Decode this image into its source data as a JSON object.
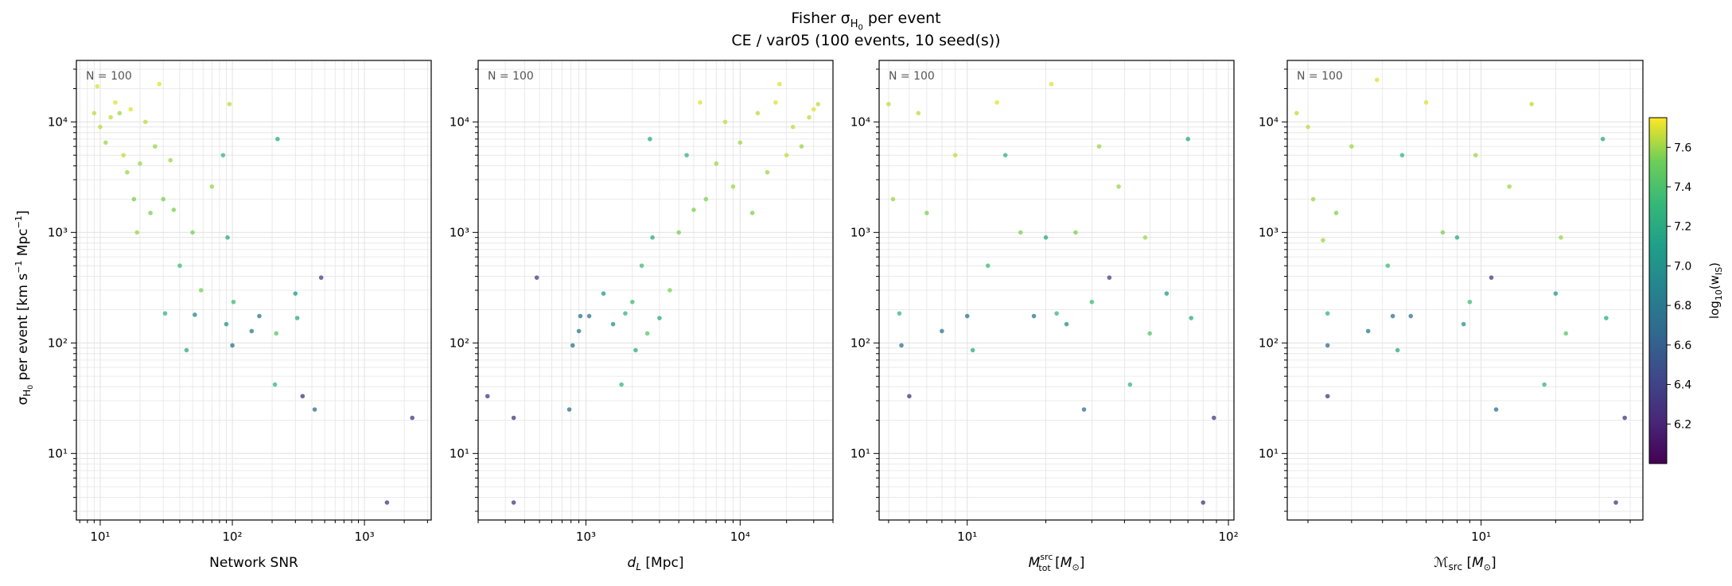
{
  "figure": {
    "title_prefix": "Fisher σ",
    "title_sub": "H",
    "title_subsub": "0",
    "title_suffix": " per event",
    "subtitle": "CE / var05  (100 events, 10 seed(s))"
  },
  "colorbar": {
    "label": "log₁₀(w_IS)",
    "label_main": "log",
    "label_base": "10",
    "label_arg": "(w",
    "label_argsub": "IS",
    "label_close": ")",
    "range": [
      6.0,
      7.75
    ],
    "ticks": [
      "6.2",
      "6.4",
      "6.6",
      "6.8",
      "7.0",
      "7.2",
      "7.4",
      "7.6"
    ],
    "colormap": "viridis"
  },
  "chart_data": [
    {
      "type": "scatter",
      "annotation": "N = 100",
      "xlabel": "Network SNR",
      "ylabel": "σ_H0 per event [km s⁻¹ Mpc⁻¹]",
      "xscale": "log",
      "yscale": "log",
      "xlim": [
        6.6,
        3200
      ],
      "ylim": [
        2.5,
        36000
      ],
      "x_ticks": [
        "10¹",
        "10²",
        "10³"
      ],
      "y_ticks": [
        "10¹",
        "10²",
        "10³",
        "10⁴"
      ],
      "grid": true,
      "points": [
        {
          "x": 9,
          "y": 12000,
          "c": 7.65
        },
        {
          "x": 9.5,
          "y": 21000,
          "c": 7.7
        },
        {
          "x": 10,
          "y": 9000,
          "c": 7.65
        },
        {
          "x": 11,
          "y": 6500,
          "c": 7.6
        },
        {
          "x": 12,
          "y": 11000,
          "c": 7.65
        },
        {
          "x": 13,
          "y": 15000,
          "c": 7.7
        },
        {
          "x": 14,
          "y": 12000,
          "c": 7.6
        },
        {
          "x": 15,
          "y": 5000,
          "c": 7.65
        },
        {
          "x": 16,
          "y": 3500,
          "c": 7.6
        },
        {
          "x": 17,
          "y": 13000,
          "c": 7.7
        },
        {
          "x": 18,
          "y": 2000,
          "c": 7.55
        },
        {
          "x": 19,
          "y": 1000,
          "c": 7.6
        },
        {
          "x": 20,
          "y": 4200,
          "c": 7.6
        },
        {
          "x": 22,
          "y": 10000,
          "c": 7.65
        },
        {
          "x": 24,
          "y": 1500,
          "c": 7.55
        },
        {
          "x": 26,
          "y": 6000,
          "c": 7.6
        },
        {
          "x": 28,
          "y": 22000,
          "c": 7.7
        },
        {
          "x": 30,
          "y": 2000,
          "c": 7.55
        },
        {
          "x": 31,
          "y": 185,
          "c": 7.3
        },
        {
          "x": 34,
          "y": 4500,
          "c": 7.6
        },
        {
          "x": 36,
          "y": 1600,
          "c": 7.55
        },
        {
          "x": 40,
          "y": 500,
          "c": 7.35
        },
        {
          "x": 45,
          "y": 86,
          "c": 7.2
        },
        {
          "x": 50,
          "y": 1000,
          "c": 7.55
        },
        {
          "x": 52,
          "y": 180,
          "c": 6.9
        },
        {
          "x": 58,
          "y": 300,
          "c": 7.55
        },
        {
          "x": 70,
          "y": 2600,
          "c": 7.6
        },
        {
          "x": 85,
          "y": 5000,
          "c": 7.3
        },
        {
          "x": 90,
          "y": 148,
          "c": 7.0
        },
        {
          "x": 92,
          "y": 900,
          "c": 7.2
        },
        {
          "x": 95,
          "y": 14500,
          "c": 7.65
        },
        {
          "x": 100,
          "y": 95,
          "c": 6.7
        },
        {
          "x": 102,
          "y": 235,
          "c": 7.35
        },
        {
          "x": 140,
          "y": 128,
          "c": 6.8
        },
        {
          "x": 160,
          "y": 175,
          "c": 6.75
        },
        {
          "x": 210,
          "y": 42,
          "c": 7.3
        },
        {
          "x": 215,
          "y": 122,
          "c": 7.45
        },
        {
          "x": 220,
          "y": 7000,
          "c": 7.2
        },
        {
          "x": 300,
          "y": 280,
          "c": 7.05
        },
        {
          "x": 310,
          "y": 168,
          "c": 7.2
        },
        {
          "x": 340,
          "y": 33,
          "c": 6.3
        },
        {
          "x": 420,
          "y": 25,
          "c": 6.7
        },
        {
          "x": 470,
          "y": 390,
          "c": 6.35
        },
        {
          "x": 1480,
          "y": 3.6,
          "c": 6.3
        },
        {
          "x": 2300,
          "y": 21,
          "c": 6.3
        }
      ]
    },
    {
      "type": "scatter",
      "annotation": "N = 100",
      "xlabel": "d_L [Mpc]",
      "xscale": "log",
      "yscale": "log",
      "xlim": [
        200,
        40000
      ],
      "ylim": [
        2.5,
        36000
      ],
      "x_ticks": [
        "10³",
        "10⁴"
      ],
      "y_ticks": [
        "10¹",
        "10²",
        "10³",
        "10⁴"
      ],
      "grid": true,
      "points": [
        {
          "x": 230,
          "y": 33,
          "c": 6.3
        },
        {
          "x": 340,
          "y": 3.6,
          "c": 6.3
        },
        {
          "x": 340,
          "y": 21,
          "c": 6.3
        },
        {
          "x": 480,
          "y": 390,
          "c": 6.35
        },
        {
          "x": 780,
          "y": 25,
          "c": 6.7
        },
        {
          "x": 820,
          "y": 95,
          "c": 6.7
        },
        {
          "x": 900,
          "y": 128,
          "c": 6.8
        },
        {
          "x": 920,
          "y": 175,
          "c": 6.75
        },
        {
          "x": 1050,
          "y": 175,
          "c": 6.75
        },
        {
          "x": 1300,
          "y": 280,
          "c": 7.05
        },
        {
          "x": 1500,
          "y": 148,
          "c": 7.0
        },
        {
          "x": 1700,
          "y": 42,
          "c": 7.3
        },
        {
          "x": 1800,
          "y": 185,
          "c": 7.3
        },
        {
          "x": 2000,
          "y": 235,
          "c": 7.35
        },
        {
          "x": 2100,
          "y": 86,
          "c": 7.2
        },
        {
          "x": 2300,
          "y": 500,
          "c": 7.35
        },
        {
          "x": 2500,
          "y": 122,
          "c": 7.45
        },
        {
          "x": 2600,
          "y": 7000,
          "c": 7.2
        },
        {
          "x": 2700,
          "y": 900,
          "c": 7.2
        },
        {
          "x": 3000,
          "y": 168,
          "c": 7.2
        },
        {
          "x": 3500,
          "y": 300,
          "c": 7.55
        },
        {
          "x": 4000,
          "y": 1000,
          "c": 7.55
        },
        {
          "x": 4500,
          "y": 5000,
          "c": 7.3
        },
        {
          "x": 5000,
          "y": 1600,
          "c": 7.55
        },
        {
          "x": 5500,
          "y": 15000,
          "c": 7.7
        },
        {
          "x": 6000,
          "y": 2000,
          "c": 7.55
        },
        {
          "x": 7000,
          "y": 4200,
          "c": 7.6
        },
        {
          "x": 8000,
          "y": 10000,
          "c": 7.65
        },
        {
          "x": 9000,
          "y": 2600,
          "c": 7.6
        },
        {
          "x": 10000,
          "y": 6500,
          "c": 7.6
        },
        {
          "x": 12000,
          "y": 1500,
          "c": 7.55
        },
        {
          "x": 13000,
          "y": 12000,
          "c": 7.65
        },
        {
          "x": 15000,
          "y": 3500,
          "c": 7.6
        },
        {
          "x": 17000,
          "y": 15000,
          "c": 7.7
        },
        {
          "x": 18000,
          "y": 22000,
          "c": 7.7
        },
        {
          "x": 20000,
          "y": 5000,
          "c": 7.65
        },
        {
          "x": 22000,
          "y": 9000,
          "c": 7.65
        },
        {
          "x": 25000,
          "y": 6000,
          "c": 7.6
        },
        {
          "x": 28000,
          "y": 11000,
          "c": 7.65
        },
        {
          "x": 30000,
          "y": 13000,
          "c": 7.7
        },
        {
          "x": 32000,
          "y": 14500,
          "c": 7.65
        }
      ]
    },
    {
      "type": "scatter",
      "annotation": "N = 100",
      "xlabel": "M_tot^src [M☉]",
      "xscale": "log",
      "yscale": "log",
      "xlim": [
        4.6,
        105
      ],
      "ylim": [
        2.5,
        36000
      ],
      "x_ticks": [
        "10¹",
        "10²"
      ],
      "y_ticks": [
        "10¹",
        "10²",
        "10³",
        "10⁴"
      ],
      "grid": true,
      "points": [
        {
          "x": 5,
          "y": 14500,
          "c": 7.65
        },
        {
          "x": 5.2,
          "y": 2000,
          "c": 7.6
        },
        {
          "x": 5.5,
          "y": 185,
          "c": 7.3
        },
        {
          "x": 5.6,
          "y": 95,
          "c": 6.7
        },
        {
          "x": 6,
          "y": 33,
          "c": 6.3
        },
        {
          "x": 6.5,
          "y": 12000,
          "c": 7.65
        },
        {
          "x": 7,
          "y": 1500,
          "c": 7.55
        },
        {
          "x": 8,
          "y": 128,
          "c": 6.8
        },
        {
          "x": 9,
          "y": 5000,
          "c": 7.65
        },
        {
          "x": 10,
          "y": 175,
          "c": 6.75
        },
        {
          "x": 10.5,
          "y": 86,
          "c": 7.2
        },
        {
          "x": 12,
          "y": 500,
          "c": 7.35
        },
        {
          "x": 13,
          "y": 15000,
          "c": 7.7
        },
        {
          "x": 14,
          "y": 5000,
          "c": 7.3
        },
        {
          "x": 16,
          "y": 1000,
          "c": 7.55
        },
        {
          "x": 18,
          "y": 175,
          "c": 6.75
        },
        {
          "x": 20,
          "y": 900,
          "c": 7.2
        },
        {
          "x": 21,
          "y": 22000,
          "c": 7.7
        },
        {
          "x": 22,
          "y": 185,
          "c": 7.3
        },
        {
          "x": 24,
          "y": 148,
          "c": 7.0
        },
        {
          "x": 26,
          "y": 1000,
          "c": 7.55
        },
        {
          "x": 28,
          "y": 25,
          "c": 6.7
        },
        {
          "x": 30,
          "y": 235,
          "c": 7.35
        },
        {
          "x": 32,
          "y": 6000,
          "c": 7.6
        },
        {
          "x": 35,
          "y": 390,
          "c": 6.35
        },
        {
          "x": 38,
          "y": 2600,
          "c": 7.6
        },
        {
          "x": 42,
          "y": 42,
          "c": 7.3
        },
        {
          "x": 48,
          "y": 900,
          "c": 7.6
        },
        {
          "x": 50,
          "y": 122,
          "c": 7.45
        },
        {
          "x": 58,
          "y": 280,
          "c": 7.05
        },
        {
          "x": 70,
          "y": 7000,
          "c": 7.2
        },
        {
          "x": 72,
          "y": 168,
          "c": 7.2
        },
        {
          "x": 80,
          "y": 3.6,
          "c": 6.3
        },
        {
          "x": 88,
          "y": 21,
          "c": 6.3
        }
      ]
    },
    {
      "type": "scatter",
      "annotation": "N = 100",
      "xlabel": "ℳ_src [M☉]",
      "xscale": "log",
      "yscale": "log",
      "xlim": [
        1.65,
        45
      ],
      "ylim": [
        2.5,
        36000
      ],
      "x_ticks": [
        "10¹"
      ],
      "y_ticks": [
        "10¹",
        "10²",
        "10³",
        "10⁴"
      ],
      "grid": true,
      "points": [
        {
          "x": 1.8,
          "y": 12000,
          "c": 7.65
        },
        {
          "x": 2.0,
          "y": 9000,
          "c": 7.65
        },
        {
          "x": 2.1,
          "y": 2000,
          "c": 7.6
        },
        {
          "x": 2.3,
          "y": 850,
          "c": 7.6
        },
        {
          "x": 2.4,
          "y": 185,
          "c": 7.3
        },
        {
          "x": 2.4,
          "y": 95,
          "c": 6.7
        },
        {
          "x": 2.4,
          "y": 33,
          "c": 6.3
        },
        {
          "x": 2.6,
          "y": 1500,
          "c": 7.55
        },
        {
          "x": 3.0,
          "y": 6000,
          "c": 7.6
        },
        {
          "x": 3.5,
          "y": 128,
          "c": 6.8
        },
        {
          "x": 3.8,
          "y": 24000,
          "c": 7.7
        },
        {
          "x": 4.2,
          "y": 500,
          "c": 7.35
        },
        {
          "x": 4.4,
          "y": 175,
          "c": 6.75
        },
        {
          "x": 4.6,
          "y": 86,
          "c": 7.2
        },
        {
          "x": 4.8,
          "y": 5000,
          "c": 7.3
        },
        {
          "x": 5.2,
          "y": 175,
          "c": 6.75
        },
        {
          "x": 6.0,
          "y": 15000,
          "c": 7.7
        },
        {
          "x": 7.0,
          "y": 1000,
          "c": 7.55
        },
        {
          "x": 8.0,
          "y": 900,
          "c": 7.2
        },
        {
          "x": 8.5,
          "y": 148,
          "c": 7.0
        },
        {
          "x": 9.0,
          "y": 235,
          "c": 7.35
        },
        {
          "x": 9.5,
          "y": 5000,
          "c": 7.6
        },
        {
          "x": 11.0,
          "y": 390,
          "c": 6.35
        },
        {
          "x": 11.5,
          "y": 25,
          "c": 6.7
        },
        {
          "x": 13.0,
          "y": 2600,
          "c": 7.6
        },
        {
          "x": 16.0,
          "y": 14500,
          "c": 7.65
        },
        {
          "x": 18.0,
          "y": 42,
          "c": 7.3
        },
        {
          "x": 20.0,
          "y": 280,
          "c": 7.05
        },
        {
          "x": 21.0,
          "y": 900,
          "c": 7.6
        },
        {
          "x": 22.0,
          "y": 122,
          "c": 7.45
        },
        {
          "x": 31.0,
          "y": 7000,
          "c": 7.2
        },
        {
          "x": 32.0,
          "y": 168,
          "c": 7.2
        },
        {
          "x": 35.0,
          "y": 3.6,
          "c": 6.3
        },
        {
          "x": 38.0,
          "y": 21,
          "c": 6.3
        }
      ]
    }
  ]
}
